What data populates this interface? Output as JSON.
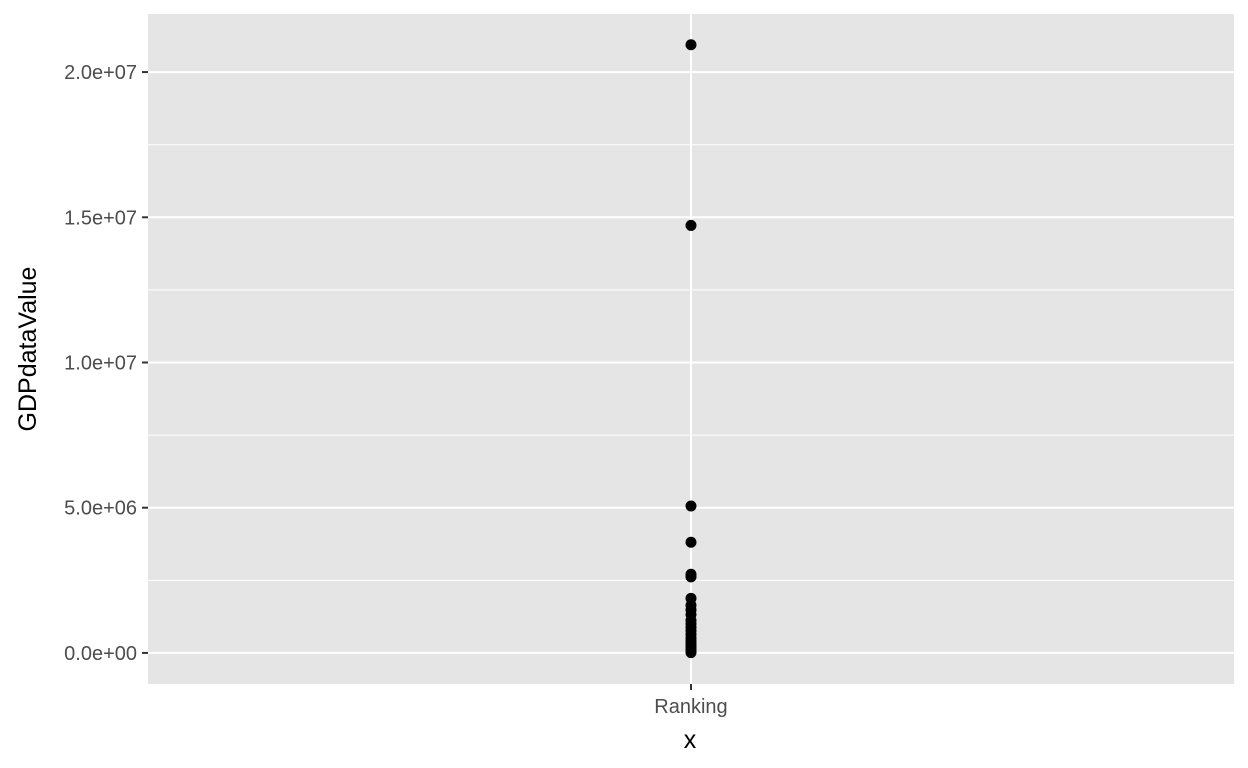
{
  "chart_data": {
    "type": "scatter",
    "title": "",
    "xlabel": "x",
    "ylabel": "GDPdataValue",
    "categories": [
      "Ranking"
    ],
    "x_tick_labels": [
      "Ranking"
    ],
    "y_ticks": [
      0,
      5000000,
      10000000,
      15000000,
      20000000
    ],
    "y_tick_labels": [
      "0.0e+00",
      "5.0e+06",
      "1.0e+07",
      "1.5e+07",
      "2.0e+07"
    ],
    "ylim": [
      -1070000,
      22000000
    ],
    "grid": true,
    "legend": "none",
    "colors": {
      "panel": "#e5e5e5",
      "grid": "#ffffff",
      "point": "#000000",
      "tick_text": "#4d4d4d"
    },
    "points": [
      {
        "x": "Ranking",
        "y": 20940000
      },
      {
        "x": "Ranking",
        "y": 14720000
      },
      {
        "x": "Ranking",
        "y": 5060000
      },
      {
        "x": "Ranking",
        "y": 3810000
      },
      {
        "x": "Ranking",
        "y": 2710000
      },
      {
        "x": "Ranking",
        "y": 2620000
      },
      {
        "x": "Ranking",
        "y": 1880000
      },
      {
        "x": "Ranking",
        "y": 1640000
      },
      {
        "x": "Ranking",
        "y": 1480000
      },
      {
        "x": "Ranking",
        "y": 1320000
      },
      {
        "x": "Ranking",
        "y": 1120000
      },
      {
        "x": "Ranking",
        "y": 1000000
      },
      {
        "x": "Ranking",
        "y": 880000
      },
      {
        "x": "Ranking",
        "y": 760000
      },
      {
        "x": "Ranking",
        "y": 640000
      },
      {
        "x": "Ranking",
        "y": 520000
      },
      {
        "x": "Ranking",
        "y": 420000
      },
      {
        "x": "Ranking",
        "y": 340000
      },
      {
        "x": "Ranking",
        "y": 260000
      },
      {
        "x": "Ranking",
        "y": 190000
      },
      {
        "x": "Ranking",
        "y": 130000
      },
      {
        "x": "Ranking",
        "y": 80000
      },
      {
        "x": "Ranking",
        "y": 40000
      },
      {
        "x": "Ranking",
        "y": 10000
      }
    ]
  }
}
